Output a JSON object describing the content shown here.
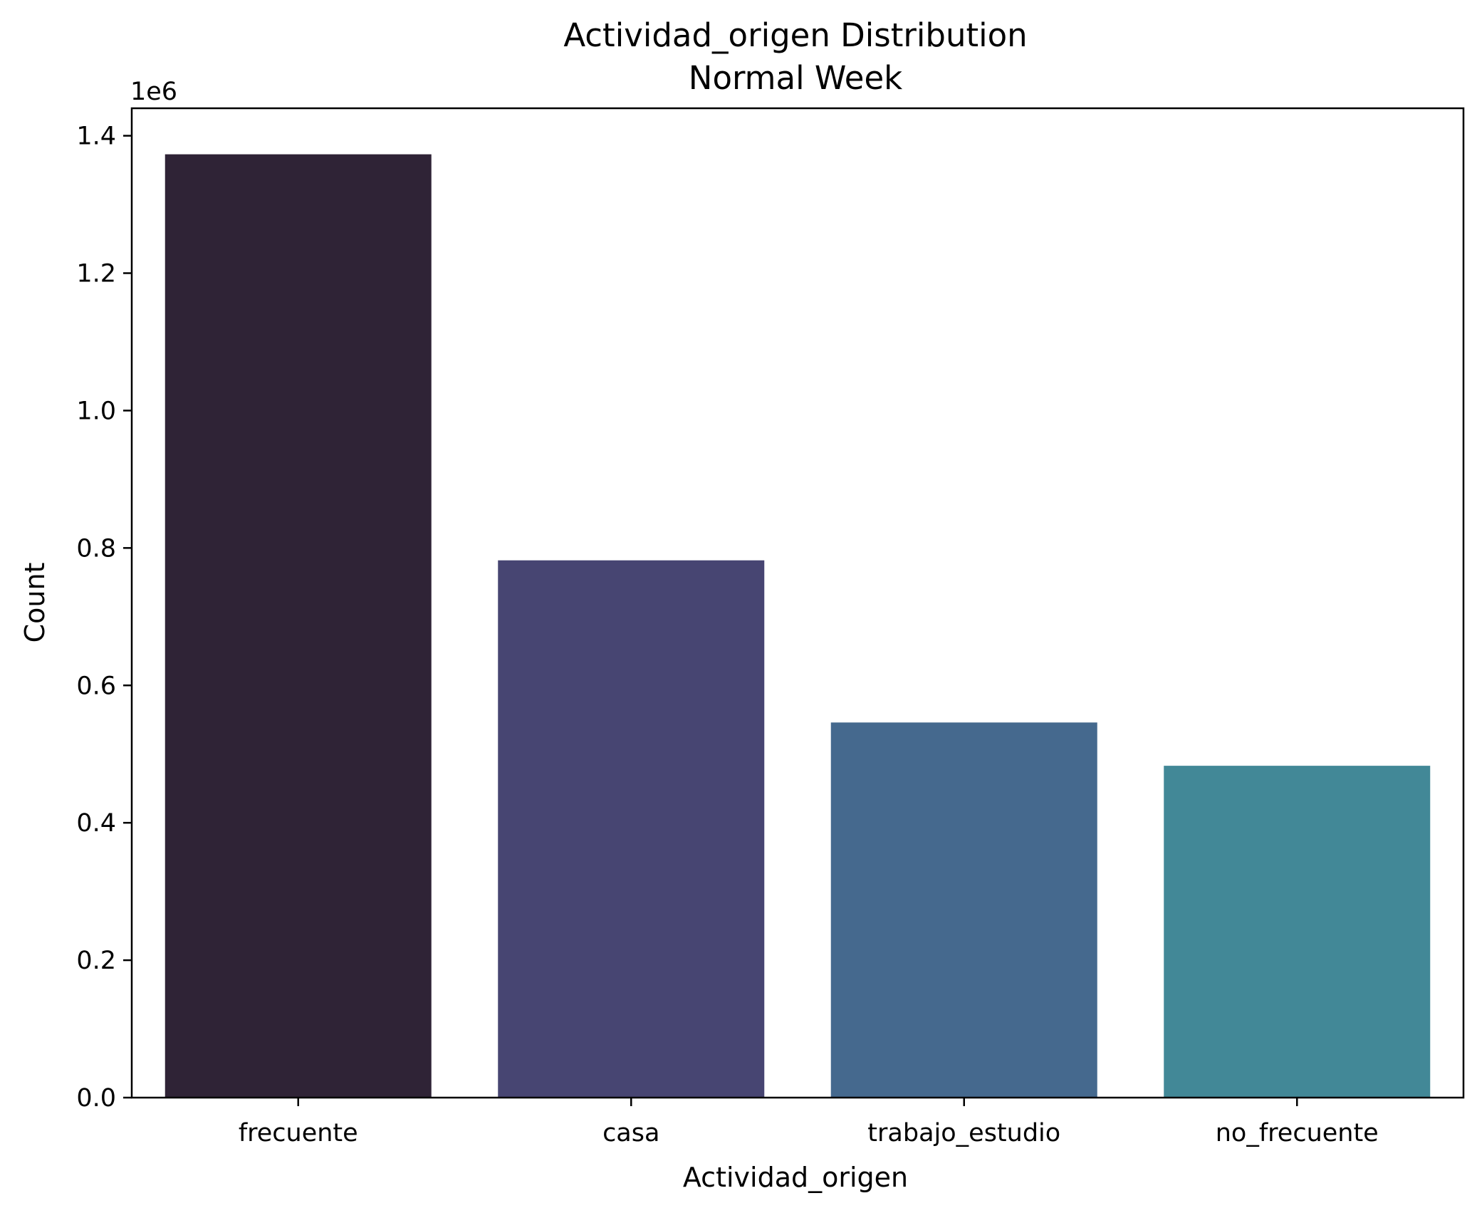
{
  "chart_data": {
    "type": "bar",
    "title": "Actividad_origen Distribution",
    "subtitle": "Normal Week",
    "xlabel": "Actividad_origen",
    "ylabel": "Count",
    "y_offset_label": "1e6",
    "categories": [
      "frecuente",
      "casa",
      "trabajo_estudio",
      "no_frecuente"
    ],
    "values": [
      1373000,
      782000,
      546000,
      483000
    ],
    "colors": [
      "#2f2336",
      "#474572",
      "#45698e",
      "#428897"
    ],
    "ylim": [
      0,
      1440000
    ],
    "yticks": [
      0,
      200000,
      400000,
      600000,
      800000,
      1000000,
      1200000,
      1400000
    ],
    "ytick_labels": [
      "0.0",
      "0.2",
      "0.4",
      "0.6",
      "0.8",
      "1.0",
      "1.2",
      "1.4"
    ],
    "grid": false,
    "legend": false
  }
}
